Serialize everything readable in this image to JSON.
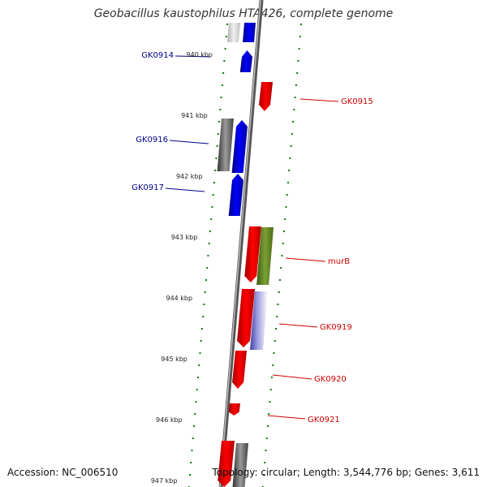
{
  "title": "Geobacillus kaustophilus HTA426, complete genome",
  "footer": {
    "accession": "Accession: NC_006510",
    "topology": "Topology: circular; Length: 3,544,776 bp; Genes: 3,611"
  },
  "colors": {
    "forward_gene": "#0000ff",
    "reverse_gene": "#ff0000",
    "rna": "#808080",
    "murB": "#6b8e23",
    "ruler_tick": "#008000",
    "backbone": "#888888"
  },
  "ruler_labels": [
    {
      "kbp": 940,
      "label": "940 kbp"
    },
    {
      "kbp": 941,
      "label": "941 kbp"
    },
    {
      "kbp": 942,
      "label": "942 kbp"
    },
    {
      "kbp": 943,
      "label": "943 kbp"
    },
    {
      "kbp": 944,
      "label": "944 kbp"
    },
    {
      "kbp": 945,
      "label": "945 kbp"
    },
    {
      "kbp": 946,
      "label": "946 kbp"
    },
    {
      "kbp": 947,
      "label": "947 kbp"
    }
  ],
  "gene_labels": [
    {
      "name": "GK0914",
      "strand": "+"
    },
    {
      "name": "GK0915",
      "strand": "-"
    },
    {
      "name": "GK0916",
      "strand": "+"
    },
    {
      "name": "GK0917",
      "strand": "+"
    },
    {
      "name": "murB",
      "strand": "-"
    },
    {
      "name": "GK0919",
      "strand": "-"
    },
    {
      "name": "GK0920",
      "strand": "-"
    },
    {
      "name": "GK0921",
      "strand": "-"
    }
  ]
}
